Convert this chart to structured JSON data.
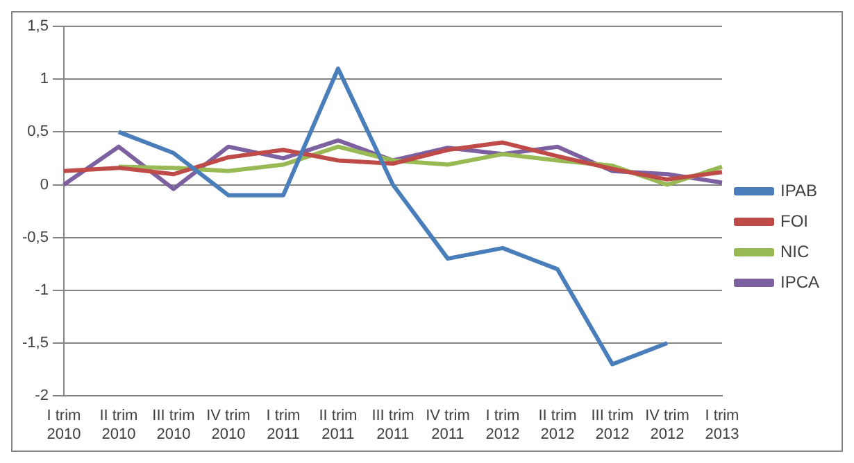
{
  "chart_data": {
    "type": "line",
    "categories": [
      "I trim 2010",
      "II trim 2010",
      "III trim 2010",
      "IV trim 2010",
      "I trim 2011",
      "II trim 2011",
      "III trim 2011",
      "IV trim 2011",
      "I trim 2012",
      "II trim 2012",
      "III trim 2012",
      "IV trim 2012",
      "I trim 2013"
    ],
    "series": [
      {
        "name": "IPAB",
        "color": "#4a7ebb",
        "values": [
          null,
          0.5,
          0.3,
          -0.1,
          -0.1,
          1.1,
          0,
          -0.7,
          -0.6,
          -0.8,
          -1.7,
          -1.5,
          null
        ]
      },
      {
        "name": "FOI",
        "color": "#be4b48",
        "values": [
          0.13,
          0.16,
          0.1,
          0.26,
          0.33,
          0.23,
          0.2,
          0.33,
          0.4,
          0.27,
          0.15,
          0.05,
          0.12
        ]
      },
      {
        "name": "NIC",
        "color": "#98b954",
        "values": [
          null,
          0.17,
          0.16,
          0.13,
          0.19,
          0.36,
          0.23,
          0.19,
          0.29,
          0.23,
          0.18,
          0.0,
          0.17
        ]
      },
      {
        "name": "IPCA",
        "color": "#7d60a0",
        "values": [
          0.0,
          0.36,
          -0.04,
          0.36,
          0.25,
          0.42,
          0.23,
          0.35,
          0.29,
          0.36,
          0.13,
          0.1,
          0.02
        ]
      }
    ],
    "ylim": [
      -2,
      1.5
    ],
    "yticks": [
      {
        "value": -2,
        "label": "-2"
      },
      {
        "value": -1.5,
        "label": "-1,5"
      },
      {
        "value": -1,
        "label": "-1"
      },
      {
        "value": -0.5,
        "label": "-0,5"
      },
      {
        "value": 0,
        "label": "0"
      },
      {
        "value": 0.5,
        "label": "0,5"
      },
      {
        "value": 1,
        "label": "1"
      },
      {
        "value": 1.5,
        "label": "1,5"
      }
    ],
    "grid": "y",
    "legend": "right",
    "marker": "none",
    "line_style": "solid"
  }
}
